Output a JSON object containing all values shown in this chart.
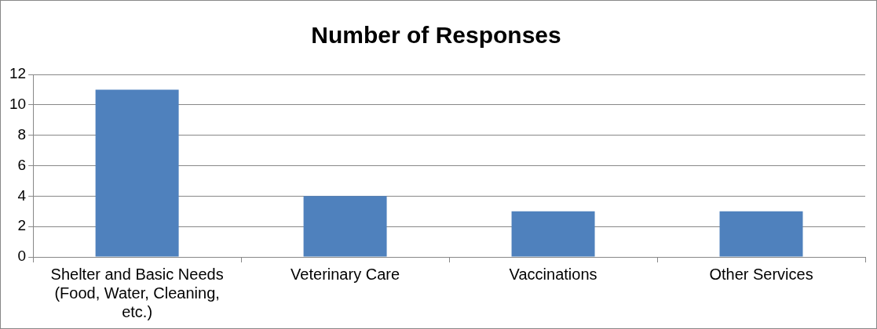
{
  "chart_data": {
    "type": "bar",
    "title": "Number of Responses",
    "categories": [
      "Shelter and Basic Needs (Food, Water, Cleaning, etc.)",
      "Veterinary Care",
      "Vaccinations",
      "Other Services"
    ],
    "values": [
      11,
      4,
      3,
      3
    ],
    "color": "#4f81bd",
    "ylim": [
      0,
      12
    ],
    "yticks": [
      0,
      2,
      4,
      6,
      8,
      10,
      12
    ],
    "grid": "y",
    "legend": false
  }
}
